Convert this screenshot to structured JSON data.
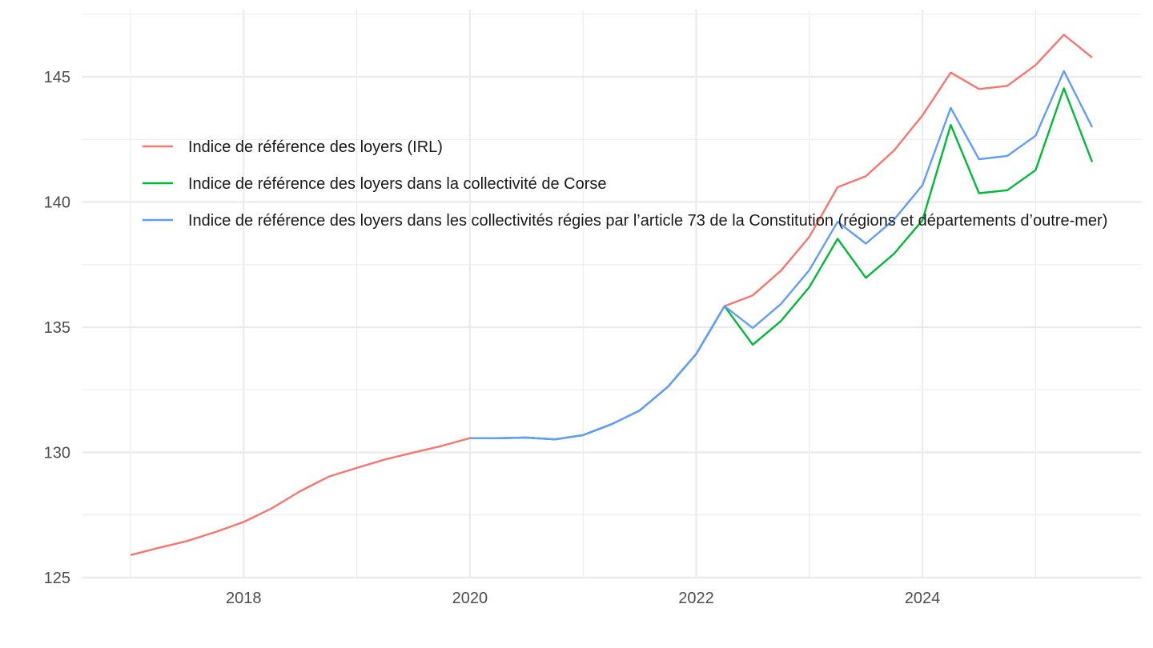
{
  "chart_data": {
    "type": "line",
    "title": "",
    "xlabel": "",
    "ylabel": "",
    "x_type": "date",
    "xlim": [
      "2016-10-01",
      "2025-10-01"
    ],
    "ylim": [
      125,
      147.5
    ],
    "x_ticks": [
      {
        "value": "2018-01-01",
        "label": "2018"
      },
      {
        "value": "2020-01-01",
        "label": "2020"
      },
      {
        "value": "2022-01-01",
        "label": "2022"
      },
      {
        "value": "2024-01-01",
        "label": "2024"
      }
    ],
    "y_ticks": [
      {
        "value": 125,
        "label": "125"
      },
      {
        "value": 130,
        "label": "130"
      },
      {
        "value": 135,
        "label": "135"
      },
      {
        "value": 140,
        "label": "140"
      },
      {
        "value": 145,
        "label": "145"
      }
    ],
    "grid": true,
    "legend_position": "inside-top-left",
    "series": [
      {
        "name": "Indice de référence des loyers (IRL)",
        "color": "#F8766D",
        "points": [
          [
            "2017-01-01",
            125.9
          ],
          [
            "2017-04-01",
            126.19
          ],
          [
            "2017-07-01",
            126.46
          ],
          [
            "2017-10-01",
            126.82
          ],
          [
            "2018-01-01",
            127.22
          ],
          [
            "2018-04-01",
            127.77
          ],
          [
            "2018-07-01",
            128.45
          ],
          [
            "2018-10-01",
            129.03
          ],
          [
            "2019-01-01",
            129.38
          ],
          [
            "2019-04-01",
            129.72
          ],
          [
            "2019-07-01",
            129.99
          ],
          [
            "2019-10-01",
            130.26
          ],
          [
            "2020-01-01",
            130.57
          ],
          [
            "2020-04-01",
            130.57
          ],
          [
            "2020-07-01",
            130.59
          ],
          [
            "2020-10-01",
            130.52
          ],
          [
            "2021-01-01",
            130.69
          ],
          [
            "2021-04-01",
            131.12
          ],
          [
            "2021-07-01",
            131.67
          ],
          [
            "2021-10-01",
            132.62
          ],
          [
            "2022-01-01",
            133.93
          ],
          [
            "2022-04-01",
            135.84
          ],
          [
            "2022-07-01",
            136.27
          ],
          [
            "2022-10-01",
            137.26
          ],
          [
            "2023-01-01",
            138.61
          ],
          [
            "2023-04-01",
            140.59
          ],
          [
            "2023-07-01",
            141.03
          ],
          [
            "2023-10-01",
            142.06
          ],
          [
            "2024-01-01",
            143.46
          ],
          [
            "2024-04-01",
            145.17
          ],
          [
            "2024-07-01",
            144.51
          ],
          [
            "2024-10-01",
            144.64
          ],
          [
            "2025-01-01",
            145.47
          ],
          [
            "2025-04-01",
            146.68
          ],
          [
            "2025-07-01",
            145.77
          ]
        ]
      },
      {
        "name": "Indice de référence des loyers dans la collectivité de Corse",
        "color": "#00BA38",
        "points": [
          [
            "2020-01-01",
            130.57
          ],
          [
            "2020-04-01",
            130.57
          ],
          [
            "2020-07-01",
            130.59
          ],
          [
            "2020-10-01",
            130.52
          ],
          [
            "2021-01-01",
            130.69
          ],
          [
            "2021-04-01",
            131.12
          ],
          [
            "2021-07-01",
            131.67
          ],
          [
            "2021-10-01",
            132.62
          ],
          [
            "2022-01-01",
            133.93
          ],
          [
            "2022-04-01",
            135.84
          ],
          [
            "2022-07-01",
            134.3
          ],
          [
            "2022-10-01",
            135.25
          ],
          [
            "2023-01-01",
            136.6
          ],
          [
            "2023-04-01",
            138.53
          ],
          [
            "2023-07-01",
            136.97
          ],
          [
            "2023-10-01",
            137.94
          ],
          [
            "2024-01-01",
            139.27
          ],
          [
            "2024-04-01",
            143.08
          ],
          [
            "2024-07-01",
            140.35
          ],
          [
            "2024-10-01",
            140.47
          ],
          [
            "2025-01-01",
            141.27
          ],
          [
            "2025-04-01",
            144.54
          ],
          [
            "2025-07-01",
            141.6
          ]
        ]
      },
      {
        "name": "Indice de référence des loyers dans les collectivités régies par l’article 73 de la Constitution (régions et départements d’outre-mer)",
        "color": "#619CFF",
        "points": [
          [
            "2020-01-01",
            130.57
          ],
          [
            "2020-04-01",
            130.57
          ],
          [
            "2020-07-01",
            130.59
          ],
          [
            "2020-10-01",
            130.52
          ],
          [
            "2021-01-01",
            130.69
          ],
          [
            "2021-04-01",
            131.12
          ],
          [
            "2021-07-01",
            131.67
          ],
          [
            "2021-10-01",
            132.62
          ],
          [
            "2022-01-01",
            133.93
          ],
          [
            "2022-04-01",
            135.84
          ],
          [
            "2022-07-01",
            134.97
          ],
          [
            "2022-10-01",
            135.93
          ],
          [
            "2023-01-01",
            137.28
          ],
          [
            "2023-04-01",
            139.21
          ],
          [
            "2023-07-01",
            138.34
          ],
          [
            "2023-10-01",
            139.3
          ],
          [
            "2024-01-01",
            140.67
          ],
          [
            "2024-04-01",
            143.76
          ],
          [
            "2024-07-01",
            141.71
          ],
          [
            "2024-10-01",
            141.84
          ],
          [
            "2025-01-01",
            142.65
          ],
          [
            "2025-04-01",
            145.23
          ],
          [
            "2025-07-01",
            142.99
          ]
        ]
      }
    ]
  }
}
